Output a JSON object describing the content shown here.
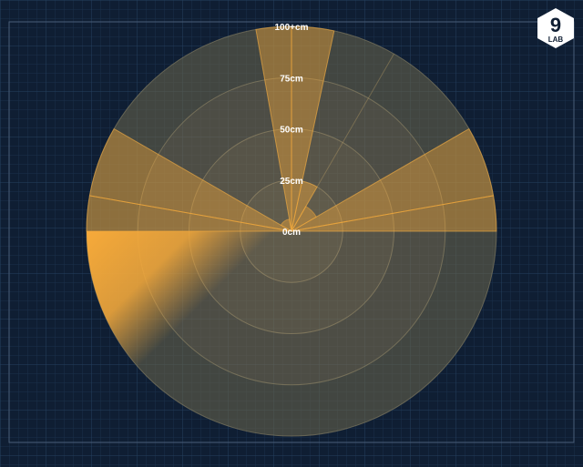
{
  "logo": {
    "number": "9",
    "word": "LAB"
  },
  "colors": {
    "background": "#0f1e33",
    "grid": "#1d3350",
    "accent": "#f5a93a",
    "ring": "#6b6a52"
  },
  "chart_data": {
    "type": "polar-area",
    "title": "",
    "unit": "cm",
    "r_range": [
      0,
      100
    ],
    "r_ticks": [
      {
        "value": 0,
        "label": "0cm"
      },
      {
        "value": 25,
        "label": "25cm"
      },
      {
        "value": 50,
        "label": "50cm"
      },
      {
        "value": 75,
        "label": "75cm"
      },
      {
        "value": 100,
        "label": "100+cm"
      }
    ],
    "sectors": [
      {
        "start_deg": 0,
        "end_deg": 12,
        "value": 100
      },
      {
        "start_deg": 12,
        "end_deg": 30,
        "value": 25
      },
      {
        "start_deg": 30,
        "end_deg": 60,
        "value": 14
      },
      {
        "start_deg": 60,
        "end_deg": 80,
        "value": 100
      },
      {
        "start_deg": 80,
        "end_deg": 90,
        "value": 100
      },
      {
        "start_deg": 90,
        "end_deg": 180,
        "value": 0
      },
      {
        "start_deg": 180,
        "end_deg": 270,
        "value": 100,
        "highlight": true
      },
      {
        "start_deg": 270,
        "end_deg": 280,
        "value": 100
      },
      {
        "start_deg": 280,
        "end_deg": 300,
        "value": 100
      },
      {
        "start_deg": 300,
        "end_deg": 350,
        "value": 6
      },
      {
        "start_deg": 350,
        "end_deg": 360,
        "value": 100
      }
    ]
  }
}
